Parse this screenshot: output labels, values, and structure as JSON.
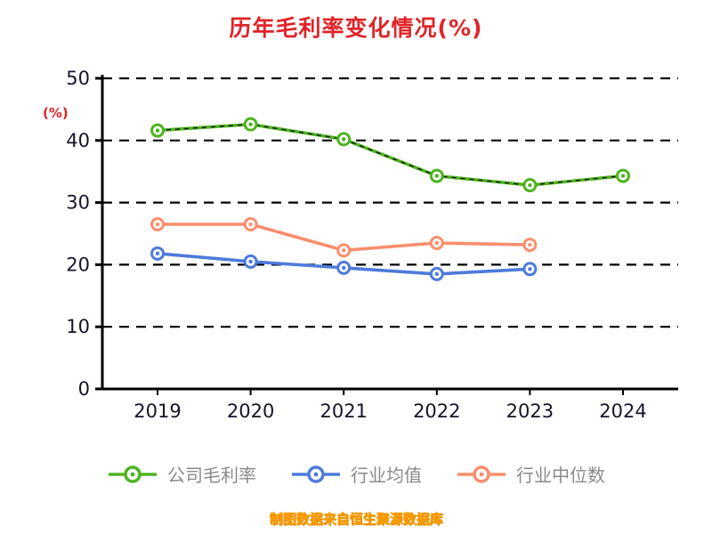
{
  "title": "历年毛利率变化情况(%)",
  "footer": "制图数据来自恒生聚源数据库",
  "chart_data": {
    "type": "line",
    "title": "历年毛利率变化情况(%)",
    "xlabel": "",
    "ylabel": "(%)",
    "ylim": [
      0,
      50
    ],
    "yticks": [
      0,
      10,
      20,
      30,
      40,
      50
    ],
    "grid": "horizontal dashed black lines",
    "legend_position": "bottom",
    "categories": [
      "2019",
      "2020",
      "2021",
      "2022",
      "2023",
      "2024"
    ],
    "series": [
      {
        "name": "公司毛利率",
        "color": "#4fb321",
        "dash_overlay": true,
        "values": [
          41.6,
          42.6,
          40.2,
          34.3,
          32.8,
          34.3
        ]
      },
      {
        "name": "行业均值",
        "color": "#4d7bdb",
        "dash_overlay": false,
        "values": [
          21.8,
          20.5,
          19.5,
          18.5,
          19.3,
          null
        ]
      },
      {
        "name": "行业中位数",
        "color": "#f98e6d",
        "dash_overlay": false,
        "values": [
          26.5,
          26.5,
          22.3,
          23.5,
          23.2,
          null
        ]
      }
    ],
    "colors": {
      "title": "#e02428",
      "ylabel": "#e02428",
      "footer": "#ff9c00",
      "legend_text": "#8a8a8a",
      "axis": "#000000"
    }
  }
}
